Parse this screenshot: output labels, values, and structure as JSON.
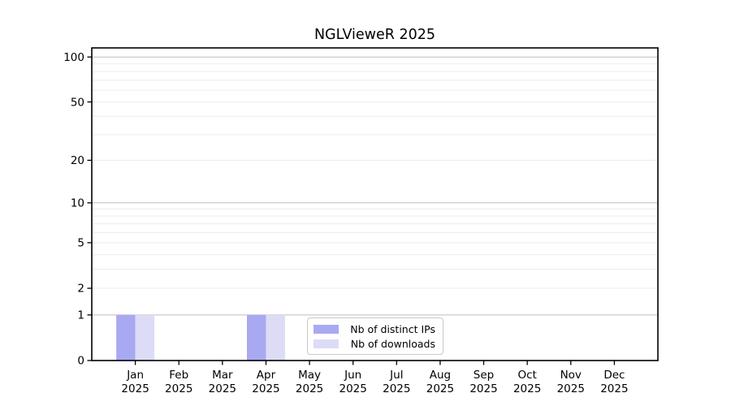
{
  "chart_data": {
    "type": "bar",
    "title": "NGLVieweR 2025",
    "x_year_label": "2025",
    "months": [
      "Jan",
      "Feb",
      "Mar",
      "Apr",
      "May",
      "Jun",
      "Jul",
      "Aug",
      "Sep",
      "Oct",
      "Nov",
      "Dec"
    ],
    "series": [
      {
        "name": "Nb of distinct IPs",
        "color": "#a9a9f1",
        "values": [
          1,
          0,
          0,
          1,
          0,
          0,
          0,
          0,
          0,
          0,
          0,
          0
        ]
      },
      {
        "name": "Nb of downloads",
        "color": "#dcdcf6",
        "values": [
          1,
          0,
          0,
          1,
          0,
          0,
          0,
          0,
          0,
          0,
          0,
          0
        ]
      }
    ],
    "yscale": "log1p",
    "ylim": [
      0,
      115
    ],
    "ytick_values": [
      0,
      1,
      2,
      5,
      10,
      20,
      50,
      100
    ],
    "major_grid_values": [
      1,
      10,
      100
    ],
    "minor_grid_values": [
      2,
      3,
      4,
      5,
      6,
      7,
      8,
      9,
      20,
      30,
      40,
      50,
      60,
      70,
      80,
      90
    ],
    "grid": true,
    "legend_position": "bottom-center",
    "colors": {
      "axis_frame": "#000000",
      "major_grid": "#bdbdbd",
      "minor_grid": "#ececec",
      "tick_text": "#000000"
    }
  }
}
